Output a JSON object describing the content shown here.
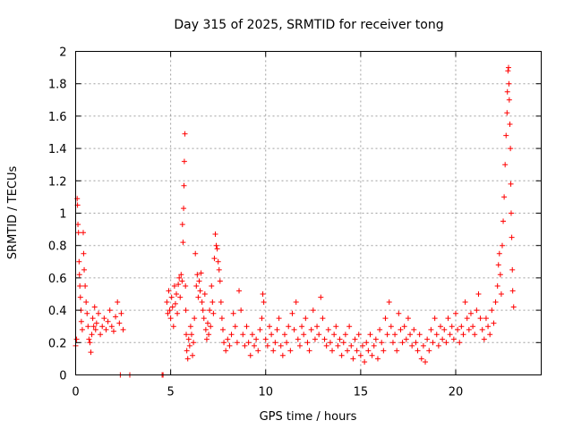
{
  "chart_data": {
    "type": "scatter",
    "title": "Day 315 of 2025, SRMTID for receiver tong",
    "xlabel": "GPS time / hours",
    "ylabel": "SRMTID / TECUs",
    "xlim": [
      0,
      24.5
    ],
    "ylim": [
      0,
      2
    ],
    "xticks": [
      0,
      5,
      10,
      15,
      20
    ],
    "xtick_labels": [
      "0",
      "5",
      "10",
      "15",
      "20"
    ],
    "yticks": [
      0,
      0.2,
      0.4,
      0.6,
      0.8,
      1.0,
      1.2,
      1.4,
      1.6,
      1.8,
      2.0
    ],
    "ytick_labels": [
      "0",
      "0.2",
      "0.4",
      "0.6",
      "0.8",
      "1",
      "1.2",
      "1.4",
      "1.6",
      "1.8",
      "2"
    ],
    "grid": true,
    "marker": "+",
    "marker_color": "#ff0000",
    "series": [
      {
        "name": "SRMTID",
        "points": [
          [
            0.0,
            0.18
          ],
          [
            0.05,
            0.22
          ],
          [
            0.08,
            1.09
          ],
          [
            0.1,
            1.05
          ],
          [
            0.12,
            0.93
          ],
          [
            0.15,
            0.88
          ],
          [
            0.18,
            0.7
          ],
          [
            0.2,
            0.62
          ],
          [
            0.22,
            0.55
          ],
          [
            0.25,
            0.48
          ],
          [
            0.28,
            0.4
          ],
          [
            0.3,
            0.33
          ],
          [
            0.35,
            0.28
          ],
          [
            0.4,
            0.88
          ],
          [
            0.42,
            0.75
          ],
          [
            0.45,
            0.65
          ],
          [
            0.5,
            0.55
          ],
          [
            0.55,
            0.45
          ],
          [
            0.6,
            0.38
          ],
          [
            0.65,
            0.3
          ],
          [
            0.7,
            0.22
          ],
          [
            0.75,
            0.2
          ],
          [
            0.8,
            0.14
          ],
          [
            0.85,
            0.25
          ],
          [
            0.9,
            0.35
          ],
          [
            0.95,
            0.3
          ],
          [
            1.0,
            0.42
          ],
          [
            1.05,
            0.28
          ],
          [
            1.1,
            0.32
          ],
          [
            1.2,
            0.38
          ],
          [
            1.3,
            0.25
          ],
          [
            1.4,
            0.3
          ],
          [
            1.5,
            0.35
          ],
          [
            1.6,
            0.28
          ],
          [
            1.7,
            0.33
          ],
          [
            1.8,
            0.4
          ],
          [
            1.9,
            0.3
          ],
          [
            2.0,
            0.27
          ],
          [
            2.1,
            0.36
          ],
          [
            2.2,
            0.45
          ],
          [
            2.3,
            0.32
          ],
          [
            2.4,
            0.38
          ],
          [
            2.5,
            0.28
          ],
          [
            2.35,
            0.0
          ],
          [
            2.85,
            0.0
          ],
          [
            4.55,
            0.0
          ],
          [
            4.6,
            0.0
          ],
          [
            4.8,
            0.45
          ],
          [
            4.85,
            0.38
          ],
          [
            4.9,
            0.52
          ],
          [
            4.95,
            0.4
          ],
          [
            5.0,
            0.35
          ],
          [
            5.05,
            0.48
          ],
          [
            5.1,
            0.42
          ],
          [
            5.15,
            0.3
          ],
          [
            5.2,
            0.55
          ],
          [
            5.25,
            0.44
          ],
          [
            5.3,
            0.5
          ],
          [
            5.35,
            0.38
          ],
          [
            5.4,
            0.56
          ],
          [
            5.45,
            0.6
          ],
          [
            5.5,
            0.48
          ],
          [
            5.55,
            0.62
          ],
          [
            5.6,
            0.58
          ],
          [
            5.62,
            0.93
          ],
          [
            5.65,
            0.82
          ],
          [
            5.68,
            1.03
          ],
          [
            5.7,
            1.17
          ],
          [
            5.72,
            1.32
          ],
          [
            5.75,
            1.49
          ],
          [
            5.78,
            0.55
          ],
          [
            5.8,
            0.4
          ],
          [
            5.82,
            0.25
          ],
          [
            5.85,
            0.15
          ],
          [
            5.9,
            0.1
          ],
          [
            5.95,
            0.22
          ],
          [
            6.0,
            0.18
          ],
          [
            6.05,
            0.3
          ],
          [
            6.1,
            0.25
          ],
          [
            6.15,
            0.12
          ],
          [
            6.2,
            0.2
          ],
          [
            6.25,
            0.35
          ],
          [
            6.3,
            0.75
          ],
          [
            6.35,
            0.55
          ],
          [
            6.4,
            0.62
          ],
          [
            6.45,
            0.48
          ],
          [
            6.5,
            0.58
          ],
          [
            6.55,
            0.52
          ],
          [
            6.6,
            0.63
          ],
          [
            6.65,
            0.45
          ],
          [
            6.7,
            0.4
          ],
          [
            6.75,
            0.35
          ],
          [
            6.8,
            0.5
          ],
          [
            6.85,
            0.28
          ],
          [
            6.9,
            0.22
          ],
          [
            6.95,
            0.32
          ],
          [
            7.0,
            0.25
          ],
          [
            7.05,
            0.4
          ],
          [
            7.1,
            0.3
          ],
          [
            7.15,
            0.55
          ],
          [
            7.2,
            0.45
          ],
          [
            7.25,
            0.38
          ],
          [
            7.3,
            0.72
          ],
          [
            7.35,
            0.87
          ],
          [
            7.4,
            0.8
          ],
          [
            7.45,
            0.78
          ],
          [
            7.5,
            0.7
          ],
          [
            7.55,
            0.65
          ],
          [
            7.6,
            0.58
          ],
          [
            7.65,
            0.45
          ],
          [
            7.7,
            0.35
          ],
          [
            7.75,
            0.28
          ],
          [
            7.8,
            0.2
          ],
          [
            7.9,
            0.15
          ],
          [
            8.0,
            0.22
          ],
          [
            8.1,
            0.18
          ],
          [
            8.2,
            0.25
          ],
          [
            8.3,
            0.38
          ],
          [
            8.4,
            0.3
          ],
          [
            8.5,
            0.2
          ],
          [
            8.6,
            0.52
          ],
          [
            8.7,
            0.4
          ],
          [
            8.8,
            0.25
          ],
          [
            8.9,
            0.18
          ],
          [
            9.0,
            0.3
          ],
          [
            9.1,
            0.2
          ],
          [
            9.2,
            0.12
          ],
          [
            9.3,
            0.25
          ],
          [
            9.4,
            0.18
          ],
          [
            9.5,
            0.22
          ],
          [
            9.6,
            0.15
          ],
          [
            9.7,
            0.28
          ],
          [
            9.8,
            0.35
          ],
          [
            9.85,
            0.5
          ],
          [
            9.9,
            0.45
          ],
          [
            10.0,
            0.22
          ],
          [
            10.1,
            0.18
          ],
          [
            10.2,
            0.3
          ],
          [
            10.3,
            0.25
          ],
          [
            10.4,
            0.15
          ],
          [
            10.5,
            0.2
          ],
          [
            10.6,
            0.28
          ],
          [
            10.7,
            0.35
          ],
          [
            10.8,
            0.18
          ],
          [
            10.9,
            0.12
          ],
          [
            11.0,
            0.25
          ],
          [
            11.1,
            0.2
          ],
          [
            11.2,
            0.3
          ],
          [
            11.3,
            0.15
          ],
          [
            11.4,
            0.38
          ],
          [
            11.5,
            0.28
          ],
          [
            11.6,
            0.45
          ],
          [
            11.7,
            0.22
          ],
          [
            11.8,
            0.18
          ],
          [
            11.9,
            0.3
          ],
          [
            12.0,
            0.25
          ],
          [
            12.1,
            0.35
          ],
          [
            12.2,
            0.2
          ],
          [
            12.3,
            0.15
          ],
          [
            12.4,
            0.28
          ],
          [
            12.5,
            0.4
          ],
          [
            12.6,
            0.22
          ],
          [
            12.7,
            0.3
          ],
          [
            12.8,
            0.25
          ],
          [
            12.9,
            0.48
          ],
          [
            13.0,
            0.35
          ],
          [
            13.1,
            0.22
          ],
          [
            13.2,
            0.18
          ],
          [
            13.3,
            0.28
          ],
          [
            13.4,
            0.2
          ],
          [
            13.5,
            0.15
          ],
          [
            13.6,
            0.25
          ],
          [
            13.7,
            0.3
          ],
          [
            13.8,
            0.18
          ],
          [
            13.9,
            0.22
          ],
          [
            14.0,
            0.12
          ],
          [
            14.1,
            0.2
          ],
          [
            14.2,
            0.25
          ],
          [
            14.3,
            0.15
          ],
          [
            14.4,
            0.3
          ],
          [
            14.5,
            0.18
          ],
          [
            14.6,
            0.1
          ],
          [
            14.7,
            0.22
          ],
          [
            14.8,
            0.15
          ],
          [
            14.9,
            0.25
          ],
          [
            15.0,
            0.12
          ],
          [
            15.1,
            0.18
          ],
          [
            15.2,
            0.08
          ],
          [
            15.3,
            0.2
          ],
          [
            15.4,
            0.15
          ],
          [
            15.5,
            0.25
          ],
          [
            15.6,
            0.12
          ],
          [
            15.7,
            0.18
          ],
          [
            15.8,
            0.22
          ],
          [
            15.9,
            0.1
          ],
          [
            16.0,
            0.28
          ],
          [
            16.1,
            0.2
          ],
          [
            16.2,
            0.15
          ],
          [
            16.3,
            0.35
          ],
          [
            16.4,
            0.25
          ],
          [
            16.5,
            0.45
          ],
          [
            16.6,
            0.3
          ],
          [
            16.7,
            0.2
          ],
          [
            16.8,
            0.25
          ],
          [
            16.9,
            0.15
          ],
          [
            17.0,
            0.38
          ],
          [
            17.1,
            0.28
          ],
          [
            17.2,
            0.2
          ],
          [
            17.3,
            0.3
          ],
          [
            17.4,
            0.22
          ],
          [
            17.5,
            0.35
          ],
          [
            17.6,
            0.25
          ],
          [
            17.7,
            0.18
          ],
          [
            17.8,
            0.28
          ],
          [
            17.9,
            0.2
          ],
          [
            18.0,
            0.15
          ],
          [
            18.1,
            0.25
          ],
          [
            18.2,
            0.1
          ],
          [
            18.3,
            0.18
          ],
          [
            18.4,
            0.08
          ],
          [
            18.5,
            0.22
          ],
          [
            18.6,
            0.15
          ],
          [
            18.7,
            0.28
          ],
          [
            18.8,
            0.2
          ],
          [
            18.9,
            0.35
          ],
          [
            19.0,
            0.25
          ],
          [
            19.1,
            0.18
          ],
          [
            19.2,
            0.3
          ],
          [
            19.3,
            0.22
          ],
          [
            19.4,
            0.28
          ],
          [
            19.5,
            0.2
          ],
          [
            19.6,
            0.35
          ],
          [
            19.7,
            0.25
          ],
          [
            19.8,
            0.3
          ],
          [
            19.9,
            0.22
          ],
          [
            20.0,
            0.38
          ],
          [
            20.1,
            0.28
          ],
          [
            20.2,
            0.2
          ],
          [
            20.3,
            0.3
          ],
          [
            20.4,
            0.25
          ],
          [
            20.5,
            0.45
          ],
          [
            20.6,
            0.35
          ],
          [
            20.7,
            0.28
          ],
          [
            20.8,
            0.38
          ],
          [
            20.9,
            0.3
          ],
          [
            21.0,
            0.25
          ],
          [
            21.1,
            0.4
          ],
          [
            21.2,
            0.5
          ],
          [
            21.3,
            0.35
          ],
          [
            21.4,
            0.28
          ],
          [
            21.5,
            0.22
          ],
          [
            21.6,
            0.35
          ],
          [
            21.7,
            0.3
          ],
          [
            21.8,
            0.25
          ],
          [
            21.9,
            0.4
          ],
          [
            22.0,
            0.32
          ],
          [
            22.1,
            0.45
          ],
          [
            22.2,
            0.55
          ],
          [
            22.25,
            0.68
          ],
          [
            22.3,
            0.75
          ],
          [
            22.35,
            0.62
          ],
          [
            22.4,
            0.5
          ],
          [
            22.45,
            0.8
          ],
          [
            22.5,
            0.95
          ],
          [
            22.55,
            1.1
          ],
          [
            22.6,
            1.3
          ],
          [
            22.65,
            1.48
          ],
          [
            22.7,
            1.62
          ],
          [
            22.72,
            1.75
          ],
          [
            22.75,
            1.88
          ],
          [
            22.78,
            1.9
          ],
          [
            22.8,
            1.8
          ],
          [
            22.82,
            1.7
          ],
          [
            22.85,
            1.55
          ],
          [
            22.88,
            1.4
          ],
          [
            22.9,
            1.18
          ],
          [
            22.92,
            1.0
          ],
          [
            22.95,
            0.85
          ],
          [
            22.98,
            0.65
          ],
          [
            23.0,
            0.52
          ],
          [
            23.05,
            0.42
          ]
        ]
      }
    ]
  }
}
